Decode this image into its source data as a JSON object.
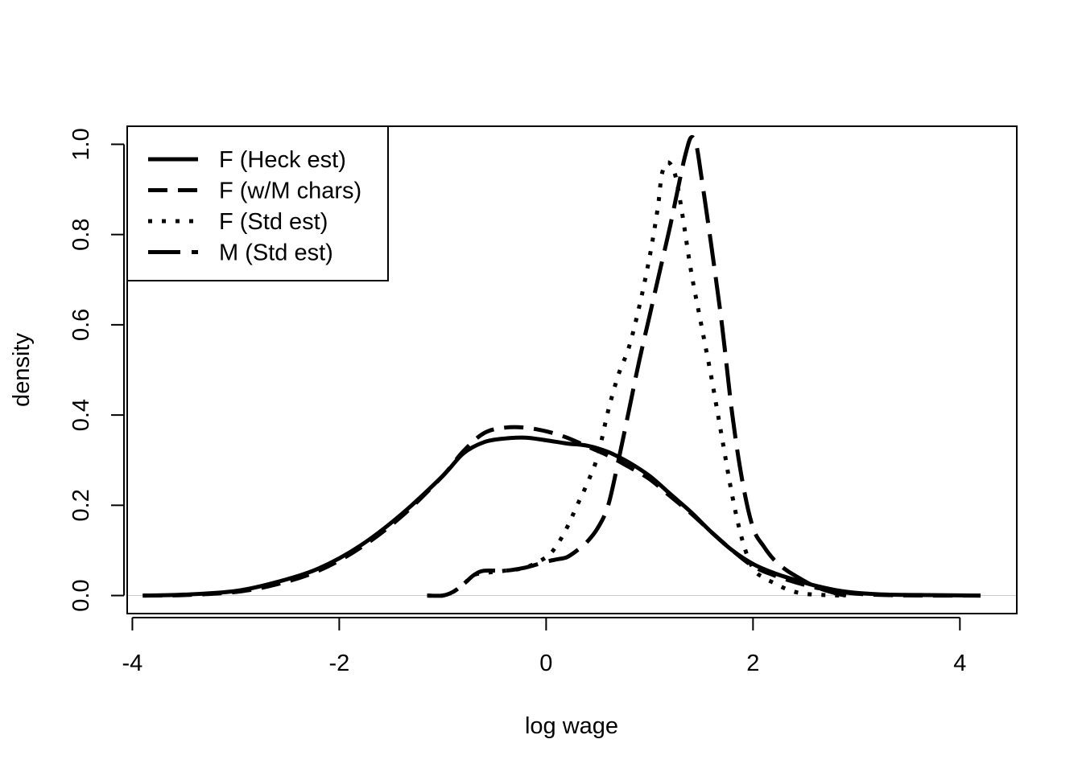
{
  "chart_data": {
    "type": "line",
    "title": "",
    "xlabel": "log wage",
    "ylabel": "density",
    "xlim": [
      -4.05,
      4.55
    ],
    "ylim": [
      -0.04,
      1.04
    ],
    "x_ticks": [
      -4,
      -2,
      0,
      2,
      4
    ],
    "y_ticks": [
      0.0,
      0.2,
      0.4,
      0.6,
      0.8,
      1.0
    ],
    "x_tick_labels": [
      "-4",
      "-2",
      "0",
      "2",
      "4"
    ],
    "y_tick_labels": [
      "0.0",
      "0.2",
      "0.4",
      "0.6",
      "0.8",
      "1.0"
    ],
    "zero_line": true,
    "legend_position": "top-left",
    "series": [
      {
        "name": "F (Heck est)",
        "style": "solid",
        "x": [
          -3.9,
          -3.5,
          -3.0,
          -2.6,
          -2.2,
          -1.8,
          -1.4,
          -1.0,
          -0.8,
          -0.6,
          -0.4,
          -0.2,
          0.0,
          0.2,
          0.4,
          0.6,
          0.8,
          1.0,
          1.2,
          1.4,
          1.6,
          1.8,
          2.0,
          2.2,
          2.4,
          2.6,
          2.8,
          3.0,
          3.3,
          3.7,
          4.2
        ],
        "y": [
          0.0,
          0.002,
          0.01,
          0.03,
          0.06,
          0.11,
          0.18,
          0.265,
          0.315,
          0.34,
          0.348,
          0.35,
          0.344,
          0.337,
          0.332,
          0.318,
          0.295,
          0.265,
          0.225,
          0.185,
          0.14,
          0.1,
          0.07,
          0.05,
          0.035,
          0.022,
          0.012,
          0.006,
          0.002,
          0.001,
          0.0
        ]
      },
      {
        "name": "F (w/M chars)",
        "style": "dashed",
        "x": [
          -3.9,
          -3.5,
          -3.0,
          -2.6,
          -2.2,
          -1.8,
          -1.4,
          -1.0,
          -0.8,
          -0.6,
          -0.4,
          -0.2,
          0.0,
          0.2,
          0.4,
          0.6,
          0.8,
          1.0,
          1.2,
          1.4,
          1.6,
          1.8,
          2.0,
          2.2,
          2.4,
          2.6,
          2.8,
          3.0,
          3.3,
          3.7,
          4.2
        ],
        "y": [
          0.0,
          0.001,
          0.008,
          0.025,
          0.055,
          0.105,
          0.175,
          0.265,
          0.32,
          0.36,
          0.372,
          0.372,
          0.364,
          0.35,
          0.33,
          0.31,
          0.285,
          0.258,
          0.22,
          0.182,
          0.14,
          0.1,
          0.065,
          0.045,
          0.03,
          0.018,
          0.01,
          0.004,
          0.001,
          0.0,
          0.0
        ]
      },
      {
        "name": "F (Std est)",
        "style": "dotted",
        "x": [
          -1.15,
          -1.0,
          -0.9,
          -0.8,
          -0.7,
          -0.6,
          -0.4,
          -0.2,
          0.0,
          0.1,
          0.2,
          0.3,
          0.4,
          0.5,
          0.6,
          0.7,
          0.8,
          0.9,
          1.0,
          1.08,
          1.12,
          1.18,
          1.25,
          1.32,
          1.4,
          1.5,
          1.6,
          1.7,
          1.8,
          1.9,
          2.0,
          2.1,
          2.2,
          2.35,
          2.5,
          2.7,
          2.9
        ],
        "y": [
          0.0,
          0.0,
          0.008,
          0.025,
          0.045,
          0.05,
          0.055,
          0.062,
          0.085,
          0.11,
          0.15,
          0.2,
          0.25,
          0.31,
          0.41,
          0.49,
          0.55,
          0.64,
          0.75,
          0.86,
          0.935,
          0.96,
          0.93,
          0.84,
          0.72,
          0.6,
          0.48,
          0.35,
          0.22,
          0.12,
          0.06,
          0.04,
          0.028,
          0.012,
          0.004,
          0.001,
          0.0
        ]
      },
      {
        "name": "M (Std est)",
        "style": "longdash",
        "x": [
          -1.15,
          -1.0,
          -0.9,
          -0.8,
          -0.7,
          -0.6,
          -0.4,
          -0.2,
          0.0,
          0.1,
          0.2,
          0.3,
          0.4,
          0.5,
          0.6,
          0.7,
          0.8,
          0.9,
          1.0,
          1.1,
          1.2,
          1.3,
          1.35,
          1.4,
          1.45,
          1.5,
          1.6,
          1.7,
          1.8,
          1.9,
          2.0,
          2.1,
          2.2,
          2.3,
          2.4,
          2.6,
          2.8,
          2.9
        ],
        "y": [
          0.0,
          0.0,
          0.008,
          0.025,
          0.045,
          0.055,
          0.055,
          0.062,
          0.075,
          0.08,
          0.085,
          0.1,
          0.12,
          0.15,
          0.2,
          0.3,
          0.41,
          0.52,
          0.62,
          0.72,
          0.82,
          0.93,
          0.98,
          1.015,
          1.0,
          0.93,
          0.77,
          0.6,
          0.4,
          0.25,
          0.15,
          0.11,
          0.08,
          0.06,
          0.045,
          0.02,
          0.005,
          0.0
        ]
      }
    ]
  }
}
